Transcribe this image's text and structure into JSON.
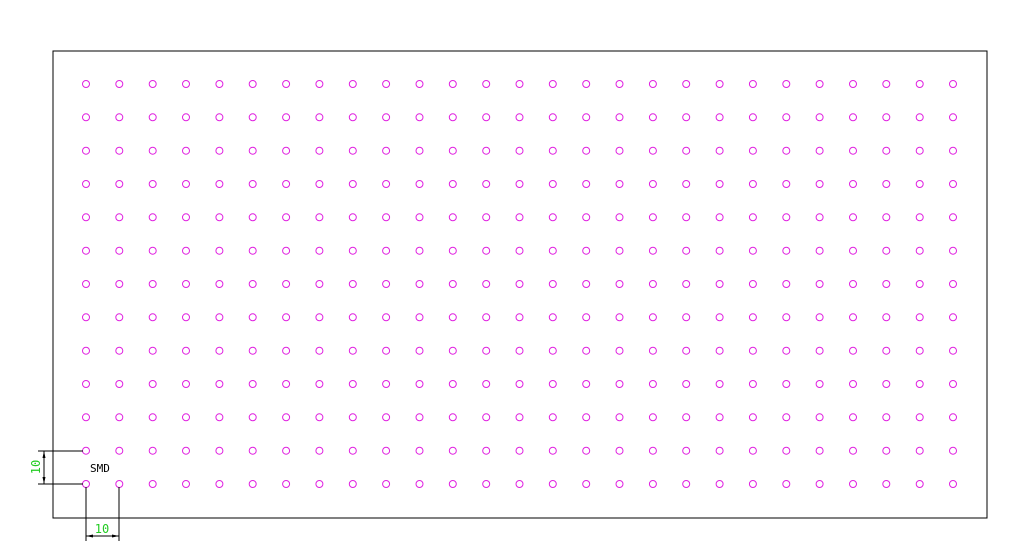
{
  "drawing": {
    "label": "SMD",
    "grid": {
      "columns": 27,
      "rows": 13,
      "pitch": 10
    },
    "dimensions": {
      "vertical": "10",
      "horizontal": "10"
    },
    "colors": {
      "pads": "#e020e0",
      "dimension_text": "#22cc22",
      "lines": "#000000",
      "background": "#ffffff"
    }
  }
}
